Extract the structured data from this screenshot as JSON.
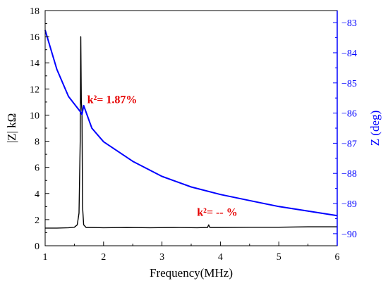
{
  "chart_data": {
    "type": "line",
    "xlabel": "Frequency(MHz)",
    "ylabel_left": "|Z| kΩ",
    "ylabel_right": "Z (deg)",
    "xlim": [
      1,
      6
    ],
    "ylim_left": [
      0,
      18
    ],
    "ylim_right": [
      -90.4,
      -82.6
    ],
    "x_ticks": [
      1,
      2,
      3,
      4,
      5,
      6
    ],
    "y_left_ticks": [
      0,
      2,
      4,
      6,
      8,
      10,
      12,
      14,
      16,
      18
    ],
    "y_right_ticks": [
      -83,
      -84,
      -85,
      -86,
      -87,
      -88,
      -89,
      -90
    ],
    "grid": false,
    "colors": {
      "magnitude": "#000000",
      "phase": "#0000ff",
      "right_axis": "#0000ff",
      "annotation": "#e60000"
    },
    "series": [
      {
        "axis": "left",
        "color": "#000000",
        "x": [
          1.0,
          1.2,
          1.4,
          1.5,
          1.55,
          1.58,
          1.6,
          1.61,
          1.62,
          1.63,
          1.64,
          1.66,
          1.7,
          1.8,
          2.0,
          2.4,
          2.8,
          3.2,
          3.6,
          3.78,
          3.8,
          3.82,
          4.0,
          4.5,
          5.0,
          5.5,
          6.0
        ],
        "y": [
          1.35,
          1.35,
          1.38,
          1.42,
          1.6,
          2.5,
          8.0,
          16.0,
          11.0,
          10.3,
          3.0,
          1.6,
          1.4,
          1.4,
          1.38,
          1.4,
          1.38,
          1.4,
          1.38,
          1.4,
          1.6,
          1.4,
          1.4,
          1.42,
          1.42,
          1.45,
          1.45
        ]
      },
      {
        "axis": "right",
        "color": "#0000ff",
        "x": [
          1.0,
          1.2,
          1.4,
          1.6,
          1.63,
          1.66,
          1.8,
          2.0,
          2.5,
          3.0,
          3.5,
          4.0,
          4.5,
          5.0,
          5.5,
          6.0
        ],
        "y": [
          -83.25,
          -84.55,
          -85.45,
          -85.95,
          -86.05,
          -85.75,
          -86.5,
          -86.95,
          -87.6,
          -88.1,
          -88.45,
          -88.7,
          -88.9,
          -89.1,
          -89.25,
          -89.4
        ]
      }
    ],
    "annotations": [
      {
        "text": "k²= 1.87%",
        "x": 1.72,
        "y": 10.9,
        "axis": "left"
      },
      {
        "text": "k²= -- %",
        "x": 3.6,
        "y": 2.3,
        "axis": "left"
      }
    ]
  }
}
